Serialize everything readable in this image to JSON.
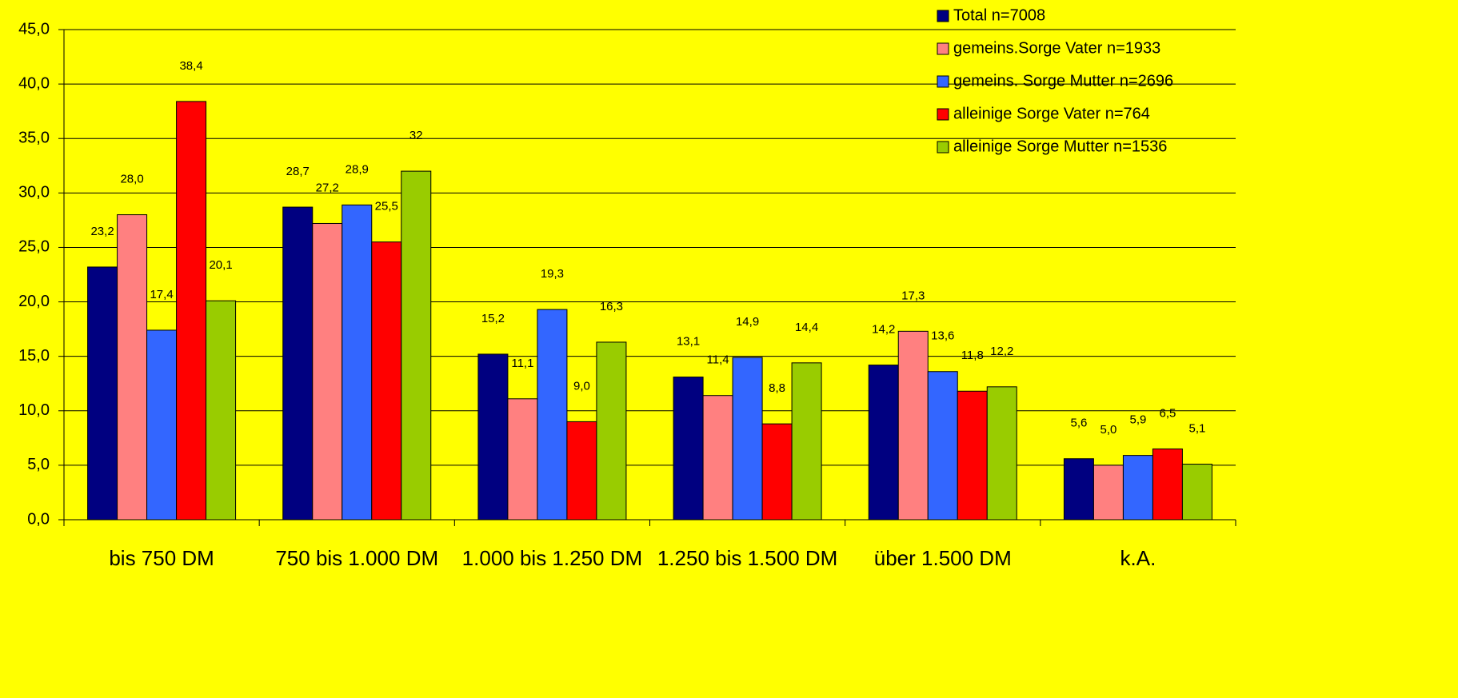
{
  "chart_data": {
    "type": "bar",
    "categories": [
      "bis 750 DM",
      "750 bis 1.000 DM",
      "1.000 bis 1.250 DM",
      "1.250 bis 1.500 DM",
      "über 1.500 DM",
      "k.A."
    ],
    "series": [
      {
        "name": "Total n=7008",
        "color": "#000080",
        "values": [
          23.2,
          28.7,
          15.2,
          13.1,
          14.2,
          5.6
        ],
        "value_labels": [
          "23,2",
          "28,7",
          "15,2",
          "13,1",
          "14,2",
          "5,6"
        ]
      },
      {
        "name": "gemeins.Sorge Vater n=1933",
        "color": "#ff8080",
        "values": [
          28.0,
          27.2,
          11.1,
          11.4,
          17.3,
          5.0
        ],
        "value_labels": [
          "28,0",
          "27,2",
          "11,1",
          "11,4",
          "17,3",
          "5,0"
        ]
      },
      {
        "name": "gemeins. Sorge Mutter n=2696",
        "color": "#3366ff",
        "values": [
          17.4,
          28.9,
          19.3,
          14.9,
          13.6,
          5.9
        ],
        "value_labels": [
          "17,4",
          "28,9",
          "19,3",
          "14,9",
          "13,6",
          "5,9"
        ]
      },
      {
        "name": "alleinige Sorge Vater n=764",
        "color": "#ff0000",
        "values": [
          38.4,
          25.5,
          9.0,
          8.8,
          11.8,
          6.5
        ],
        "value_labels": [
          "38,4",
          "25,5",
          "9,0",
          "8,8",
          "11,8",
          "6,5"
        ]
      },
      {
        "name": "alleinige Sorge Mutter n=1536",
        "color": "#99cc00",
        "values": [
          20.1,
          32,
          16.3,
          14.4,
          12.2,
          5.1
        ],
        "value_labels": [
          "20,1",
          "32",
          "16,3",
          "14,4",
          "12,2",
          "5,1"
        ]
      }
    ],
    "ylim": [
      0,
      45
    ],
    "yticks": [
      {
        "value": 0,
        "label": "0,0"
      },
      {
        "value": 5,
        "label": "5,0"
      },
      {
        "value": 10,
        "label": "10,0"
      },
      {
        "value": 15,
        "label": "15,0"
      },
      {
        "value": 20,
        "label": "20,0"
      },
      {
        "value": 25,
        "label": "25,0"
      },
      {
        "value": 30,
        "label": "30,0"
      },
      {
        "value": 35,
        "label": "35,0"
      },
      {
        "value": 40,
        "label": "40,0"
      },
      {
        "value": 45,
        "label": "45,0"
      }
    ],
    "grid": true,
    "legend": "top-right"
  }
}
